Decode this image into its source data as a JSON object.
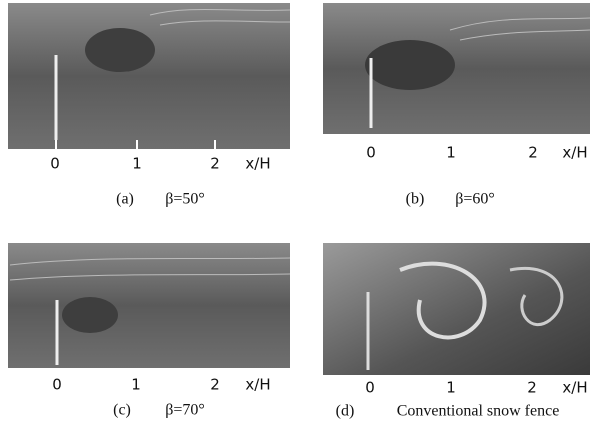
{
  "panels": [
    {
      "label": "(a)",
      "caption": "β=50°",
      "axis": [
        "0",
        "1",
        "2",
        "x/H"
      ]
    },
    {
      "label": "(b)",
      "caption": "β=60°",
      "axis": [
        "0",
        "1",
        "2",
        "x/H"
      ]
    },
    {
      "label": "(c)",
      "caption": "β=70°",
      "axis": [
        "0",
        "1",
        "2",
        "x/H"
      ]
    },
    {
      "label": "(d)",
      "caption": "Conventional snow fence",
      "axis": [
        "0",
        "1",
        "2",
        "x/H"
      ]
    }
  ]
}
